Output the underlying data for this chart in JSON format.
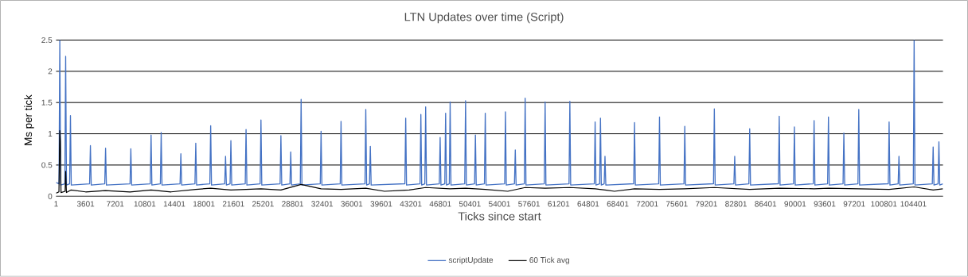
{
  "chart_data": {
    "type": "line",
    "title": "LTN Updates over time (Script)",
    "xlabel": "Ticks since start",
    "ylabel": "Ms per tick",
    "xlim": [
      1,
      108000
    ],
    "xticks": [
      1,
      3601,
      7201,
      10801,
      14401,
      18001,
      21601,
      25201,
      28801,
      32401,
      36001,
      39601,
      43201,
      46801,
      50401,
      54001,
      57601,
      61201,
      64801,
      68401,
      72001,
      75601,
      79201,
      82801,
      86401,
      90001,
      93601,
      97201,
      100801,
      104401
    ],
    "ylim": [
      0,
      2.5
    ],
    "yticks": [
      0,
      0.5,
      1,
      1.5,
      2,
      2.5
    ],
    "grid": "y",
    "legend": "bottom",
    "marker": "none",
    "line_style": "solid",
    "series": [
      {
        "name": "scriptUpdate",
        "color": "#4472c4",
        "x": [
          1,
          355,
          455,
          555,
          1067,
          1167,
          1267,
          1650,
          1750,
          1850,
          4081,
          4181,
          4281,
          5927,
          6027,
          6127,
          9005,
          9105,
          9205,
          11468,
          11568,
          11668,
          12700,
          12800,
          12900,
          15096,
          15196,
          15296,
          16911,
          17011,
          17111,
          18726,
          18826,
          18926,
          20538,
          20638,
          20738,
          21188,
          21288,
          21388,
          23035,
          23135,
          23235,
          24850,
          24950,
          25050,
          27280,
          27380,
          27480,
          28478,
          28578,
          28678,
          29741,
          29841,
          29941,
          32171,
          32271,
          32371,
          34602,
          34702,
          34802,
          37616,
          37716,
          37816,
          38168,
          38268,
          38368,
          42476,
          42576,
          42676,
          44323,
          44423,
          44523,
          44906,
          45006,
          45106,
          46670,
          46770,
          46870,
          47337,
          47437,
          47537,
          47888,
          47988,
          48088,
          49765,
          49865,
          49965,
          50965,
          51065,
          51165,
          52165,
          52265,
          52365,
          54625,
          54725,
          54825,
          55821,
          55921,
          56021,
          57023,
          57123,
          57223,
          59453,
          59553,
          59653,
          62466,
          62566,
          62666,
          65544,
          65644,
          65744,
          66194,
          66294,
          66394,
          66745,
          66845,
          66945,
          70343,
          70443,
          70543,
          73384,
          73484,
          73584,
          76464,
          76564,
          76664,
          80060,
          80160,
          80260,
          82541,
          82641,
          82741,
          84367,
          84467,
          84567,
          87963,
          88063,
          88163,
          89810,
          89910,
          90010,
          92207,
          92307,
          92407,
          93957,
          94057,
          94157,
          95834,
          95934,
          96034,
          97650,
          97750,
          97850,
          101344,
          101444,
          101544,
          102544,
          102644,
          102744,
          104391,
          104491,
          104591,
          106707,
          106807,
          106907,
          107408,
          107508,
          107608,
          108000
        ],
        "values": [
          0.22,
          0.2,
          2.5,
          0.18,
          0.2,
          2.24,
          0.18,
          0.2,
          1.29,
          0.18,
          0.2,
          0.81,
          0.18,
          0.2,
          0.77,
          0.18,
          0.2,
          0.76,
          0.18,
          0.2,
          0.98,
          0.18,
          0.2,
          1.02,
          0.18,
          0.2,
          0.68,
          0.18,
          0.2,
          0.85,
          0.18,
          0.2,
          1.13,
          0.18,
          0.2,
          0.64,
          0.18,
          0.2,
          0.89,
          0.18,
          0.2,
          1.07,
          0.18,
          0.2,
          1.22,
          0.18,
          0.2,
          0.97,
          0.18,
          0.2,
          0.71,
          0.18,
          0.2,
          1.55,
          0.18,
          0.2,
          1.04,
          0.18,
          0.2,
          1.2,
          0.18,
          0.2,
          1.39,
          0.18,
          0.2,
          0.8,
          0.18,
          0.2,
          1.25,
          0.18,
          0.2,
          1.31,
          0.18,
          0.2,
          1.43,
          0.18,
          0.2,
          0.94,
          0.18,
          0.2,
          1.33,
          0.18,
          0.2,
          1.51,
          0.18,
          0.2,
          1.53,
          0.18,
          0.2,
          0.98,
          0.18,
          0.2,
          1.33,
          0.18,
          0.2,
          1.35,
          0.18,
          0.2,
          0.74,
          0.18,
          0.2,
          1.57,
          0.18,
          0.2,
          1.51,
          0.18,
          0.2,
          1.52,
          0.18,
          0.2,
          1.19,
          0.18,
          0.2,
          1.25,
          0.18,
          0.2,
          0.64,
          0.18,
          0.2,
          1.18,
          0.18,
          0.2,
          1.27,
          0.18,
          0.2,
          1.12,
          0.18,
          0.2,
          1.4,
          0.18,
          0.2,
          0.64,
          0.18,
          0.2,
          1.08,
          0.18,
          0.2,
          1.28,
          0.18,
          0.2,
          1.11,
          0.18,
          0.2,
          1.21,
          0.18,
          0.2,
          1.27,
          0.18,
          0.2,
          1.01,
          0.18,
          0.2,
          1.39,
          0.18,
          0.2,
          1.19,
          0.18,
          0.2,
          0.64,
          0.18,
          0.2,
          2.5,
          0.18,
          0.2,
          0.79,
          0.18,
          0.2,
          0.87,
          0.18,
          0.2
        ]
      },
      {
        "name": "60 Tick avg",
        "color": "#000000",
        "x": [
          1,
          350,
          455,
          520,
          600,
          1100,
          1167,
          1260,
          1800,
          3600,
          6000,
          9000,
          11568,
          14000,
          17011,
          18826,
          21288,
          24950,
          27380,
          29841,
          32271,
          34702,
          37716,
          40000,
          43000,
          45006,
          47988,
          49865,
          52265,
          55000,
          57123,
          59553,
          62566,
          65644,
          68000,
          70443,
          73484,
          76564,
          80160,
          84467,
          88063,
          92307,
          94057,
          97750,
          101444,
          104491,
          106807,
          108000
        ],
        "values": [
          0.05,
          0.07,
          1.05,
          0.88,
          0.06,
          0.08,
          0.4,
          0.06,
          0.1,
          0.07,
          0.09,
          0.07,
          0.1,
          0.07,
          0.11,
          0.13,
          0.1,
          0.12,
          0.1,
          0.19,
          0.12,
          0.11,
          0.13,
          0.08,
          0.1,
          0.14,
          0.12,
          0.13,
          0.11,
          0.08,
          0.14,
          0.13,
          0.14,
          0.12,
          0.08,
          0.12,
          0.11,
          0.12,
          0.14,
          0.11,
          0.13,
          0.12,
          0.13,
          0.12,
          0.11,
          0.15,
          0.1,
          0.12
        ]
      }
    ]
  }
}
